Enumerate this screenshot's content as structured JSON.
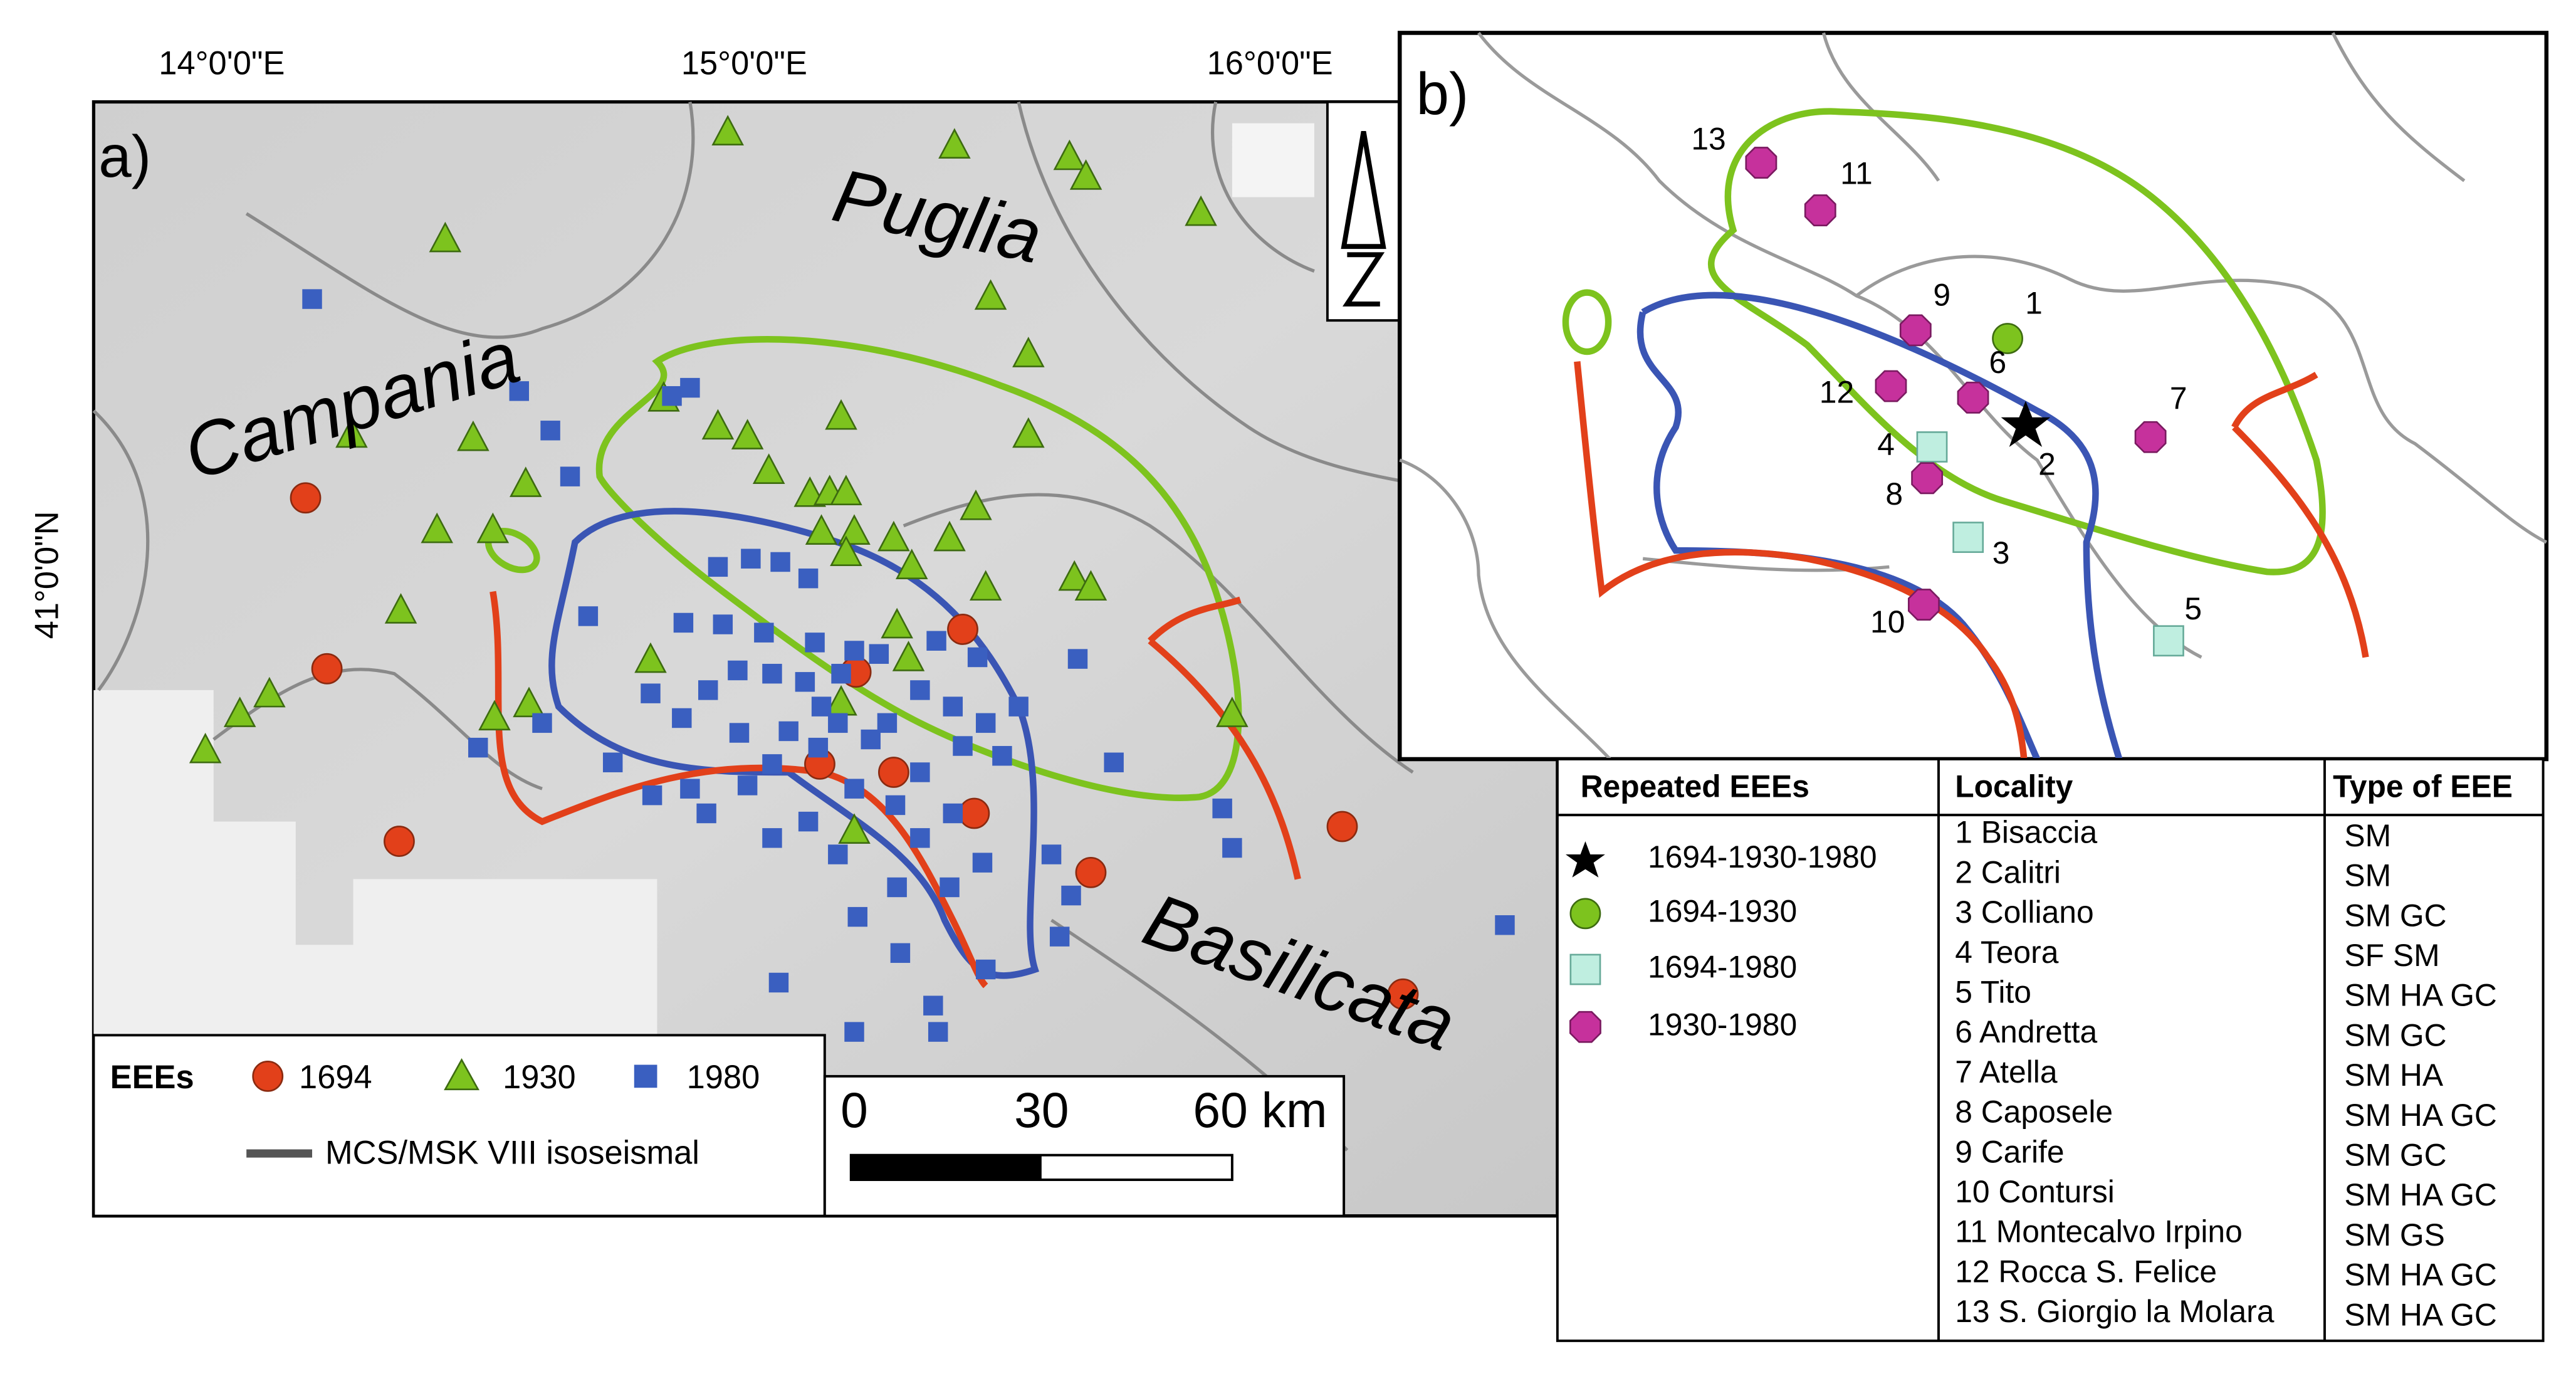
{
  "panel_a": {
    "label": "a)",
    "lon_labels": [
      "14°0'0\"E",
      "15°0'0\"E",
      "16°0'0\"E"
    ],
    "lat_label": "41°0'0\"N",
    "regions": [
      "Puglia",
      "Campania",
      "Basilicata"
    ],
    "legend": {
      "title": "EEEs",
      "items": [
        "1694",
        "1930",
        "1980"
      ],
      "line": "MCS/MSK VIII isoseismal"
    },
    "scale": [
      "0",
      "30",
      "60 km"
    ]
  },
  "panel_b": {
    "label": "b)",
    "point_labels": [
      "1",
      "2",
      "3",
      "4",
      "5",
      "6",
      "7",
      "8",
      "9",
      "10",
      "11",
      "12",
      "13"
    ]
  },
  "table": {
    "headers": [
      "Repeated EEEs",
      "Locality",
      "Type of EEE"
    ],
    "legend": [
      "1694-1930-1980",
      "1694-1930",
      "1694-1980",
      "1930-1980"
    ],
    "localities": [
      "1 Bisaccia",
      "2 Calitri",
      "3 Colliano",
      "4 Teora",
      "5 Tito",
      "6 Andretta",
      "7 Atella",
      "8 Caposele",
      "9 Carife",
      "10 Contursi",
      "11 Montecalvo Irpino",
      "12 Rocca S. Felice",
      "13 S. Giorgio la Molara"
    ],
    "types": [
      "SM",
      "SM",
      "SM GC",
      "SF SM",
      "SM HA GC",
      "SM GC",
      "SM HA",
      "SM HA GC",
      "SM GC",
      "SM HA GC",
      "SM GS",
      "SM HA GC",
      "SM HA GC"
    ]
  }
}
